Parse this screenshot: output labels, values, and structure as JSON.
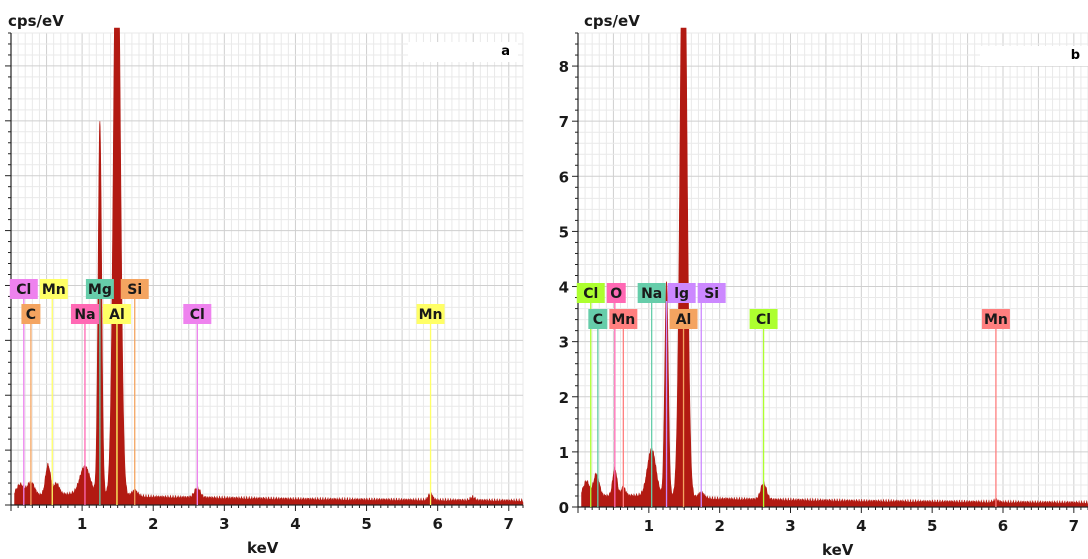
{
  "chart_data": [
    {
      "type": "line",
      "panel_label": "a",
      "unit_label": "cps/eV",
      "xlabel": "keV",
      "xlim": [
        0,
        7.2
      ],
      "x_ticks": [
        "1",
        "2",
        "3",
        "4",
        "5",
        "6",
        "7"
      ],
      "y_ticks": [],
      "spectrum_color": "#b21a12",
      "spectrum": {
        "baseline": [
          [
            0.05,
            0.15
          ],
          [
            0.3,
            0.14
          ],
          [
            0.6,
            0.16
          ],
          [
            1.0,
            0.18
          ],
          [
            1.5,
            0.15
          ],
          [
            2.0,
            0.12
          ],
          [
            3.0,
            0.1
          ],
          [
            4.0,
            0.08
          ],
          [
            5.0,
            0.07
          ],
          [
            6.0,
            0.06
          ],
          [
            7.2,
            0.05
          ]
        ],
        "peaks": [
          {
            "keV": 0.13,
            "height": 0.2,
            "width": 0.05
          },
          {
            "keV": 0.28,
            "height": 0.25,
            "width": 0.05
          },
          {
            "keV": 0.52,
            "height": 0.55,
            "width": 0.035
          },
          {
            "keV": 0.64,
            "height": 0.2,
            "width": 0.04
          },
          {
            "keV": 1.04,
            "height": 0.5,
            "width": 0.07
          },
          {
            "keV": 1.25,
            "height": 6.8,
            "width": 0.025
          },
          {
            "keV": 1.49,
            "height": 12.0,
            "width": 0.045
          },
          {
            "keV": 1.74,
            "height": 0.1,
            "width": 0.04
          },
          {
            "keV": 2.62,
            "height": 0.18,
            "width": 0.04
          },
          {
            "keV": 5.9,
            "height": 0.12,
            "width": 0.03
          },
          {
            "keV": 6.49,
            "height": 0.06,
            "width": 0.03
          }
        ],
        "ymax": 8.6
      },
      "element_markers": [
        {
          "label": "Cl",
          "keV": 0.18,
          "row": 1,
          "color": "#ee82ee",
          "line_top": 0.6
        },
        {
          "label": "C",
          "keV": 0.28,
          "row": 2,
          "color": "#f4a460",
          "line_top": 0.62
        },
        {
          "label": "Mn",
          "keV": 0.58,
          "row": 1,
          "color": "#ffff66",
          "line_top": 0.63
        },
        {
          "label": "Na",
          "keV": 1.04,
          "row": 2,
          "color": "#ff69b4",
          "line_top": 0.62
        },
        {
          "label": "Mg",
          "keV": 1.25,
          "row": 1,
          "color": "#66cdaa",
          "line_top": 0.63
        },
        {
          "label": "Al",
          "keV": 1.49,
          "row": 2,
          "color": "#ffff66",
          "line_top": 0.62
        },
        {
          "label": "Si",
          "keV": 1.74,
          "row": 1,
          "color": "#f4a460",
          "line_top": 0.62
        },
        {
          "label": "Cl",
          "keV": 2.62,
          "row": 2,
          "color": "#ee82ee",
          "line_top": 0.62
        },
        {
          "label": "Mn",
          "keV": 5.9,
          "row": 2,
          "color": "#ffff66",
          "line_top": 0.62
        }
      ]
    },
    {
      "type": "line",
      "panel_label": "b",
      "unit_label": "cps/eV",
      "xlabel": "keV",
      "xlim": [
        0,
        7.2
      ],
      "x_ticks": [
        "1",
        "2",
        "3",
        "4",
        "5",
        "6",
        "7"
      ],
      "ylim": [
        0,
        8.6
      ],
      "y_ticks": [
        "0",
        "1",
        "2",
        "3",
        "4",
        "5",
        "6",
        "7",
        "8"
      ],
      "spectrum_color": "#b21a12",
      "spectrum": {
        "baseline": [
          [
            0.05,
            0.2
          ],
          [
            0.3,
            0.17
          ],
          [
            0.6,
            0.18
          ],
          [
            1.0,
            0.18
          ],
          [
            1.5,
            0.15
          ],
          [
            2.0,
            0.12
          ],
          [
            3.0,
            0.1
          ],
          [
            4.0,
            0.08
          ],
          [
            5.0,
            0.07
          ],
          [
            6.0,
            0.06
          ],
          [
            7.2,
            0.05
          ]
        ],
        "peaks": [
          {
            "keV": 0.12,
            "height": 0.25,
            "width": 0.04
          },
          {
            "keV": 0.26,
            "height": 0.4,
            "width": 0.04
          },
          {
            "keV": 0.52,
            "height": 0.5,
            "width": 0.03
          },
          {
            "keV": 0.64,
            "height": 0.15,
            "width": 0.03
          },
          {
            "keV": 1.04,
            "height": 0.85,
            "width": 0.06
          },
          {
            "keV": 1.25,
            "height": 3.9,
            "width": 0.025
          },
          {
            "keV": 1.49,
            "height": 12.0,
            "width": 0.045
          },
          {
            "keV": 1.74,
            "height": 0.1,
            "width": 0.04
          },
          {
            "keV": 2.62,
            "height": 0.3,
            "width": 0.04
          },
          {
            "keV": 5.9,
            "height": 0.04,
            "width": 0.03
          }
        ],
        "ymax": 8.6
      },
      "element_markers": [
        {
          "label": "Cl",
          "keV": 0.18,
          "row": 1,
          "color": "#adff2f",
          "line_top": 0.5
        },
        {
          "label": "C",
          "keV": 0.28,
          "row": 2,
          "color": "#66cdaa",
          "line_top": 0.5
        },
        {
          "label": "O",
          "keV": 0.52,
          "row": 1,
          "color": "#ff69b4",
          "line_top": 0.5
        },
        {
          "label": "Mn",
          "keV": 0.64,
          "row": 2,
          "color": "#ff7f7f",
          "line_top": 0.5
        },
        {
          "label": "Na",
          "keV": 1.04,
          "row": 1,
          "color": "#66cdaa",
          "line_top": 0.5
        },
        {
          "label": "lg",
          "keV": 1.25,
          "row": 1,
          "color": "#cc88ff",
          "line_top": 0.5
        },
        {
          "label": "Al",
          "keV": 1.49,
          "row": 2,
          "color": "#f4a460",
          "line_top": 0.5
        },
        {
          "label": "Si",
          "keV": 1.74,
          "row": 1,
          "color": "#cc88ff",
          "line_top": 0.5
        },
        {
          "label": "Cl",
          "keV": 2.62,
          "row": 2,
          "color": "#adff2f",
          "line_top": 0.5
        },
        {
          "label": "Mn",
          "keV": 5.9,
          "row": 2,
          "color": "#ff7f7f",
          "line_top": 0.5
        }
      ]
    }
  ]
}
